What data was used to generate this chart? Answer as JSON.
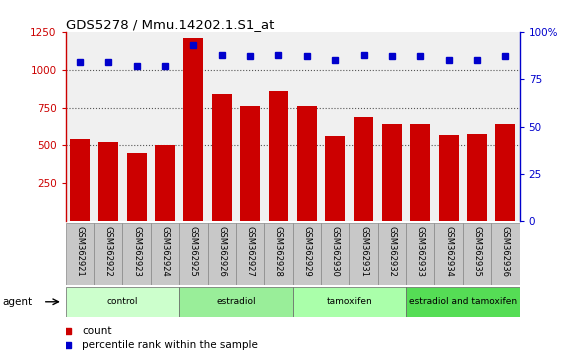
{
  "title": "GDS5278 / Mmu.14202.1.S1_at",
  "samples": [
    "GSM362921",
    "GSM362922",
    "GSM362923",
    "GSM362924",
    "GSM362925",
    "GSM362926",
    "GSM362927",
    "GSM362928",
    "GSM362929",
    "GSM362930",
    "GSM362931",
    "GSM362932",
    "GSM362933",
    "GSM362934",
    "GSM362935",
    "GSM362936"
  ],
  "counts": [
    540,
    520,
    450,
    500,
    1210,
    840,
    760,
    860,
    760,
    565,
    690,
    645,
    640,
    570,
    575,
    640
  ],
  "percentile_ranks": [
    84,
    84,
    82,
    82,
    93,
    88,
    87,
    88,
    87,
    85,
    88,
    87,
    87,
    85,
    85,
    87
  ],
  "bar_color": "#cc0000",
  "dot_color": "#0000cc",
  "ylim_left": [
    0,
    1250
  ],
  "ylim_right": [
    0,
    100
  ],
  "yticks_left": [
    250,
    500,
    750,
    1000,
    1250
  ],
  "yticks_right": [
    0,
    25,
    50,
    75,
    100
  ],
  "groups": [
    {
      "label": "control",
      "start": 0,
      "end": 4,
      "color": "#ccffcc"
    },
    {
      "label": "estradiol",
      "start": 4,
      "end": 8,
      "color": "#99ee99"
    },
    {
      "label": "tamoxifen",
      "start": 8,
      "end": 12,
      "color": "#aaffaa"
    },
    {
      "label": "estradiol and tamoxifen",
      "start": 12,
      "end": 16,
      "color": "#55dd55"
    }
  ],
  "agent_label": "agent",
  "legend_count_label": "count",
  "legend_percentile_label": "percentile rank within the sample",
  "background_color": "#ffffff",
  "plot_bg_color": "#f0f0f0",
  "tick_bg_color": "#c8c8c8",
  "dotted_line_color": "#555555",
  "axis_left_color": "#cc0000",
  "axis_right_color": "#0000cc",
  "right_axis_labels": [
    "0",
    "25",
    "50",
    "75",
    "100%"
  ]
}
